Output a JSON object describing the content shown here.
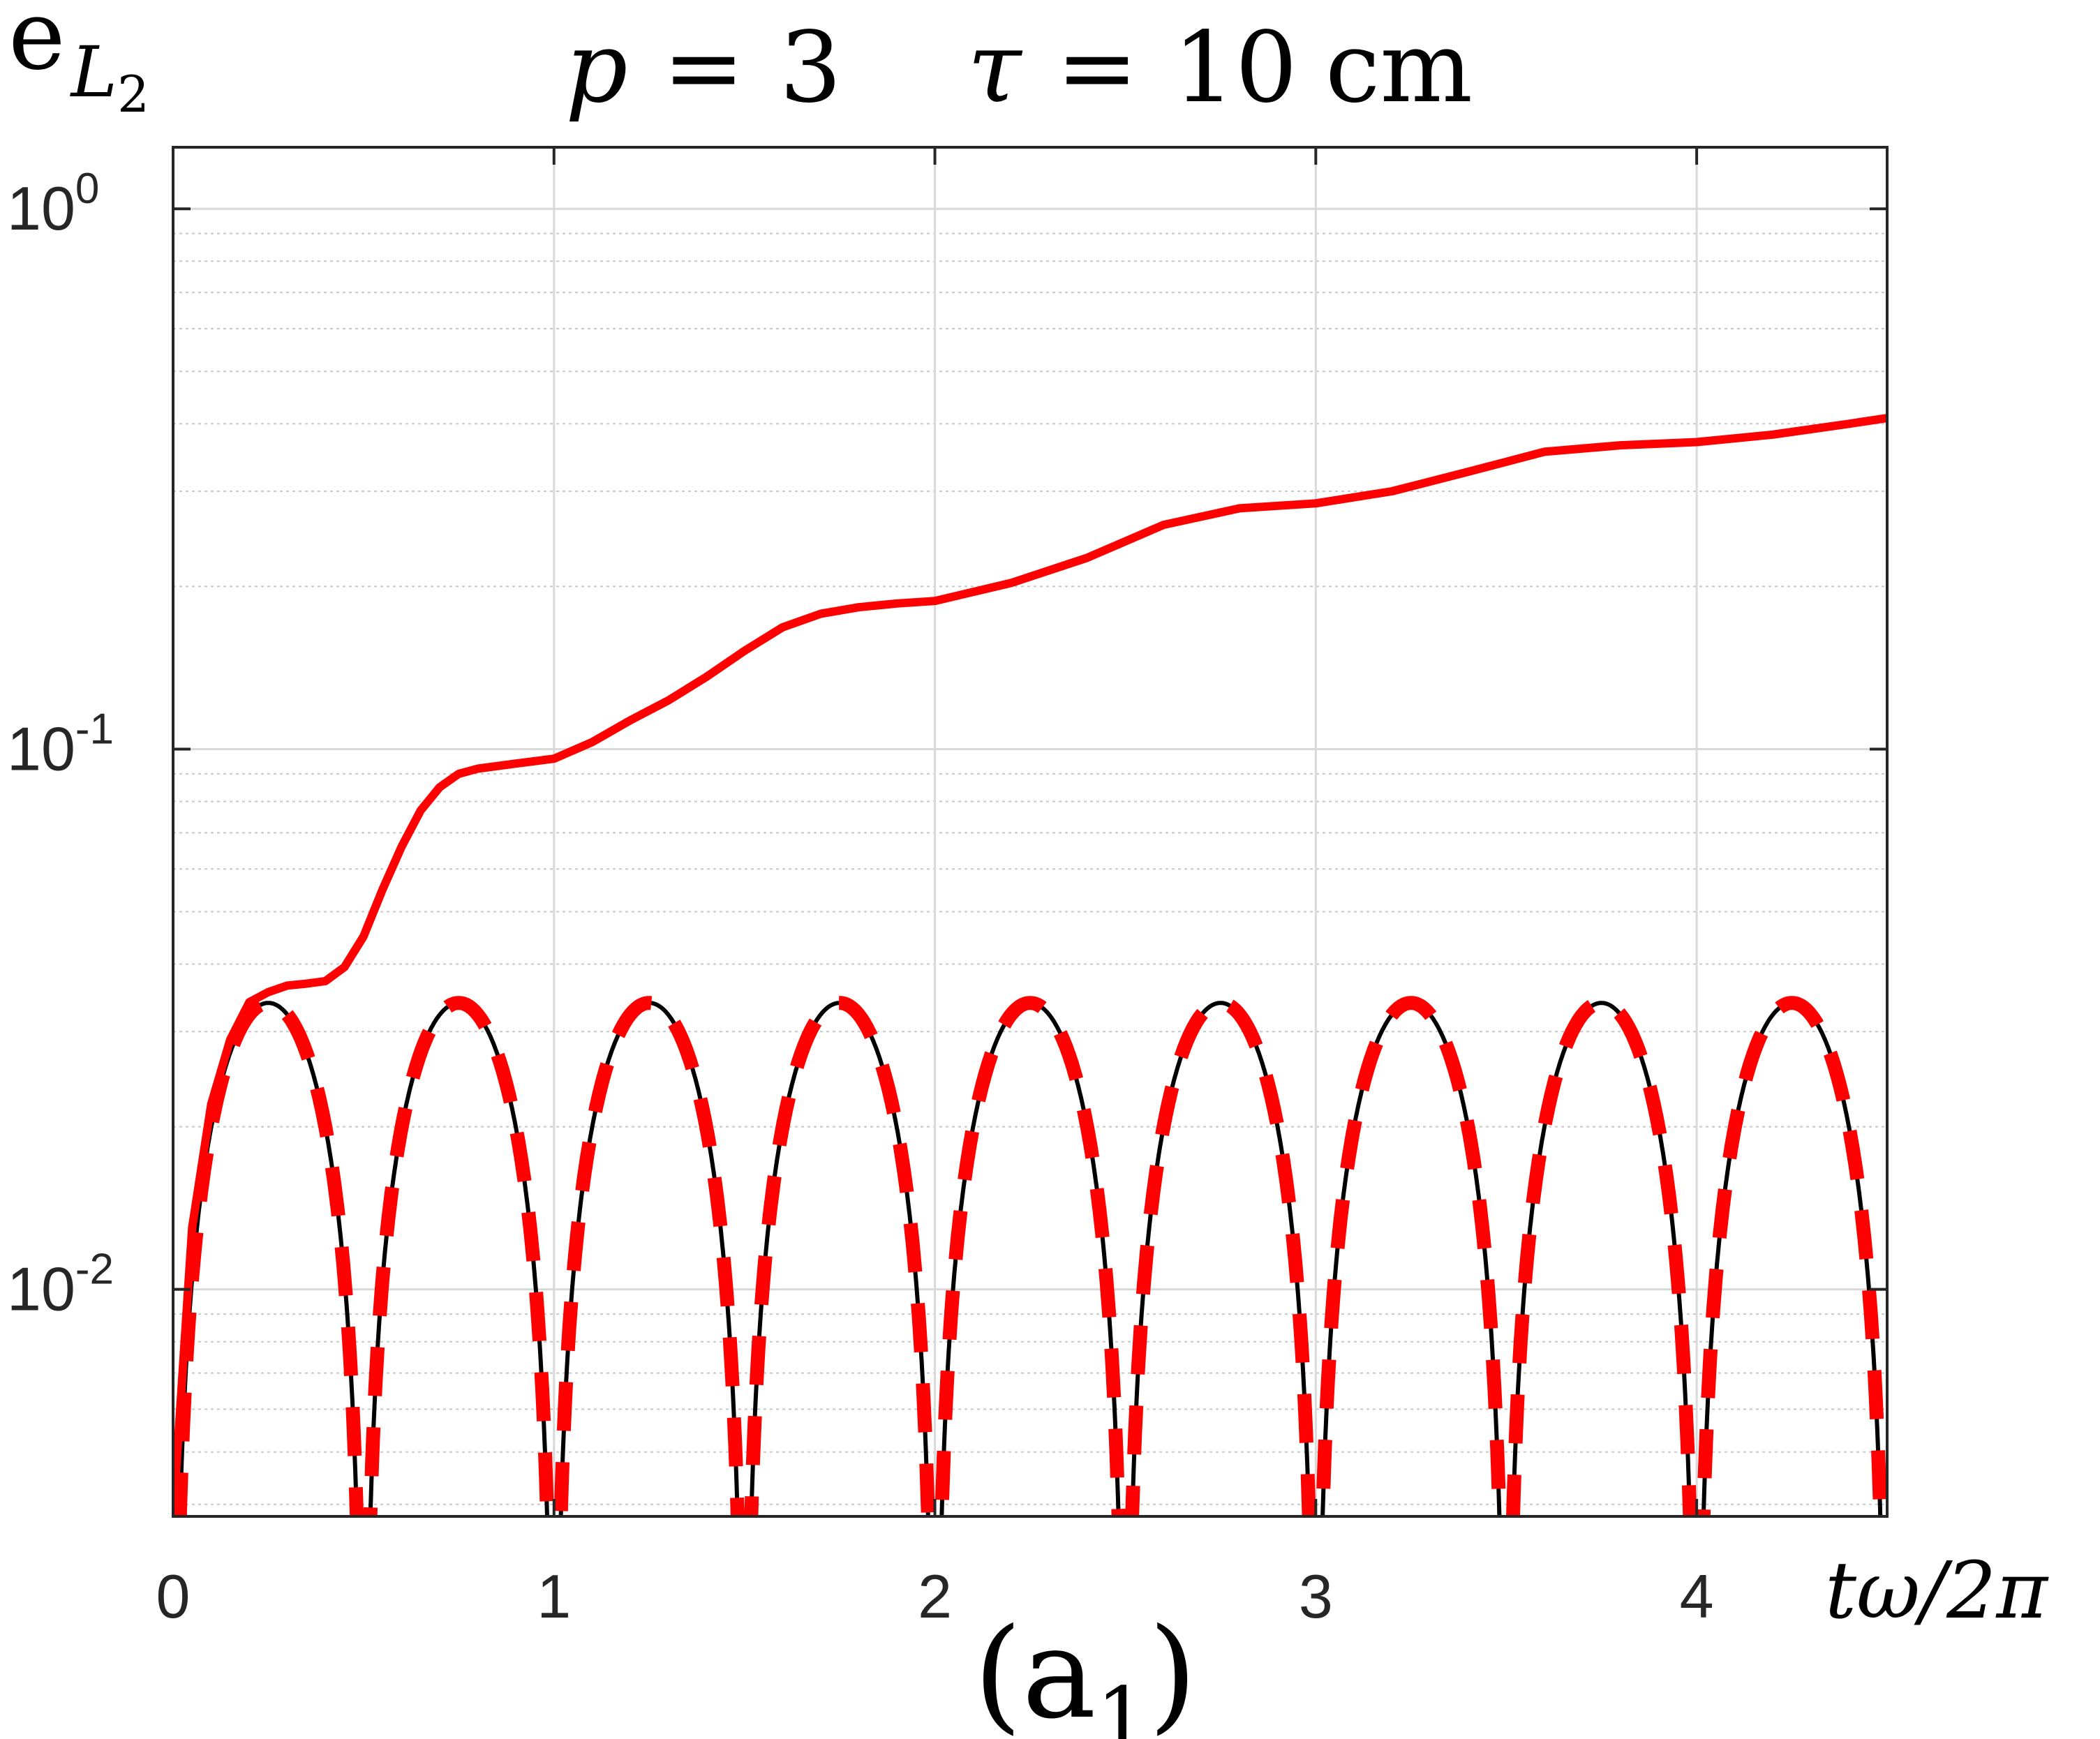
{
  "chart_data": {
    "type": "line",
    "title": {
      "p_var": "p",
      "p_val": "3",
      "tau_var": "τ",
      "tau_val": "10",
      "tau_unit": "cm"
    },
    "ylabel": {
      "main": "e",
      "sub": "L",
      "subsub": "2"
    },
    "xlabel": {
      "main": "tω/2π"
    },
    "panel_label": {
      "main": "(a",
      "sub": "1",
      "close": ")"
    },
    "xlim": [
      0,
      4.5
    ],
    "ylim": [
      0.0038,
      1.3
    ],
    "yscale": "log",
    "grid": true,
    "x_ticks": [
      "0",
      "1",
      "2",
      "3",
      "4"
    ],
    "y_ticks": [
      {
        "value": 1,
        "base": "10",
        "exp": "0"
      },
      {
        "value": 0.1,
        "base": "10",
        "exp": "-1"
      },
      {
        "value": 0.01,
        "base": "10",
        "exp": "-2"
      }
    ],
    "series": [
      {
        "style": "solid-red",
        "color": "#ff0000",
        "x": [
          0.0,
          0.05,
          0.1,
          0.15,
          0.2,
          0.25,
          0.3,
          0.35,
          0.4,
          0.45,
          0.5,
          0.55,
          0.6,
          0.65,
          0.7,
          0.75,
          0.8,
          0.9,
          1.0,
          1.1,
          1.2,
          1.3,
          1.4,
          1.5,
          1.6,
          1.7,
          1.8,
          1.9,
          2.0,
          2.2,
          2.4,
          2.6,
          2.8,
          3.0,
          3.2,
          3.4,
          3.6,
          3.8,
          4.0,
          4.2,
          4.4,
          4.5
        ],
        "y": [
          0.0038,
          0.013,
          0.022,
          0.029,
          0.034,
          0.0355,
          0.0365,
          0.0368,
          0.0372,
          0.0395,
          0.045,
          0.055,
          0.066,
          0.077,
          0.085,
          0.09,
          0.092,
          0.094,
          0.096,
          0.103,
          0.113,
          0.123,
          0.136,
          0.152,
          0.168,
          0.178,
          0.183,
          0.186,
          0.188,
          0.203,
          0.226,
          0.26,
          0.279,
          0.285,
          0.3,
          0.326,
          0.355,
          0.365,
          0.37,
          0.382,
          0.4,
          0.41
        ]
      },
      {
        "style": "dashed-red",
        "color": "#ff0000",
        "function": "0.0339*|sin(2π·t)|",
        "x_range": [
          0,
          4.5
        ]
      },
      {
        "style": "thin-black",
        "color": "#000000",
        "function": "0.0339*|sin(2π·t)|",
        "x_range": [
          0,
          4.5
        ]
      }
    ]
  }
}
